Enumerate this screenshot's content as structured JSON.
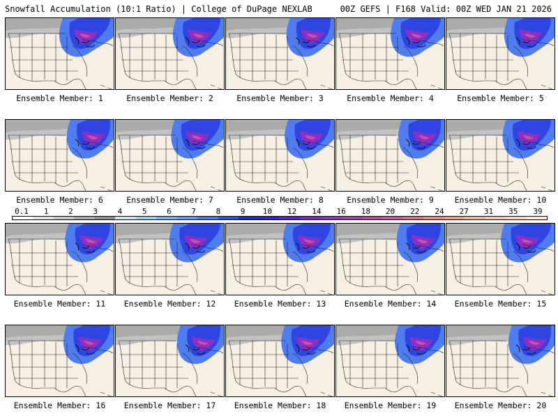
{
  "header": {
    "left": "Snowfall Accumulation (10:1 Ratio) | College of DuPage NEXLAB",
    "right": "00Z GEFS | F168 Valid: 00Z WED JAN 21 2026"
  },
  "legend": {
    "labels": [
      "0.1",
      "1",
      "2",
      "3",
      "4",
      "5",
      "6",
      "7",
      "8",
      "9",
      "10",
      "12",
      "14",
      "16",
      "18",
      "20",
      "22",
      "24",
      "27",
      "31",
      "35",
      "39"
    ],
    "colors": [
      "#ffffff",
      "#e3e3e3",
      "#c8c8c8",
      "#aaaaaa",
      "#8f8f8f",
      "#cfe9ef",
      "#9ad0e6",
      "#75b3ec",
      "#5e9bf2",
      "#3f7cf2",
      "#2457e8",
      "#1a2be0",
      "#3a1ed8",
      "#5d22cf",
      "#7b2ac4",
      "#9234b9",
      "#a43fae",
      "#b64aa3",
      "#c95a98",
      "#d86f8d",
      "#e38a86",
      "#ea9f8a",
      "#f0b49a",
      "#f4c6ac",
      "#f7d6c0",
      "#faeadd"
    ]
  },
  "panels": [
    {
      "label": "Ensemble Member: 1"
    },
    {
      "label": "Ensemble Member: 2"
    },
    {
      "label": "Ensemble Member: 3"
    },
    {
      "label": "Ensemble Member: 4"
    },
    {
      "label": "Ensemble Member: 5"
    },
    {
      "label": "Ensemble Member: 6"
    },
    {
      "label": "Ensemble Member: 7"
    },
    {
      "label": "Ensemble Member: 8"
    },
    {
      "label": "Ensemble Member: 9"
    },
    {
      "label": "Ensemble Member: 10"
    },
    {
      "label": "Ensemble Member: 11"
    },
    {
      "label": "Ensemble Member: 12"
    },
    {
      "label": "Ensemble Member: 13"
    },
    {
      "label": "Ensemble Member: 14"
    },
    {
      "label": "Ensemble Member: 15"
    },
    {
      "label": "Ensemble Member: 16"
    },
    {
      "label": "Ensemble Member: 17"
    },
    {
      "label": "Ensemble Member: 18"
    },
    {
      "label": "Ensemble Member: 19"
    },
    {
      "label": "Ensemble Member: 20"
    }
  ]
}
